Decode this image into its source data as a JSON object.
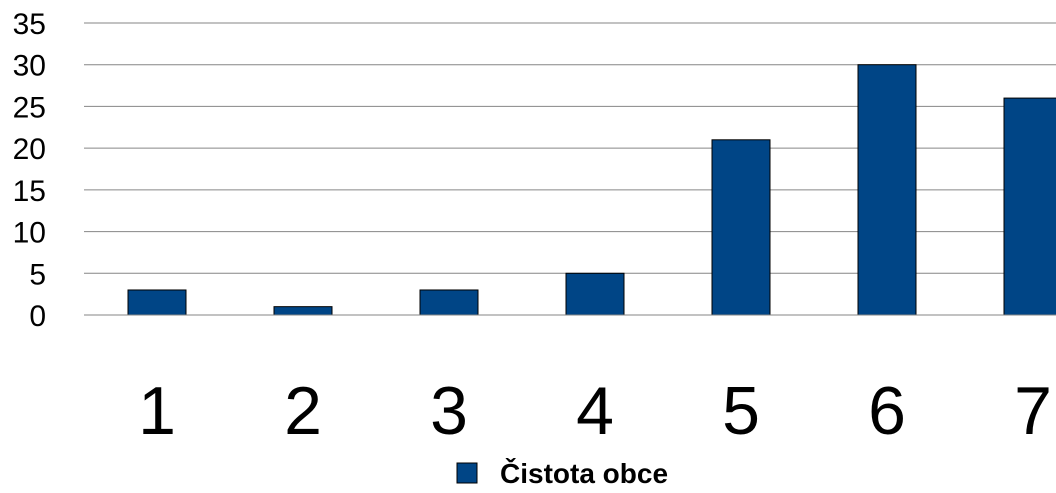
{
  "chart_data": {
    "type": "bar",
    "categories": [
      "1",
      "2",
      "3",
      "4",
      "5",
      "6",
      "7"
    ],
    "series": [
      {
        "name": "Čistota obce",
        "values": [
          3,
          1,
          3,
          5,
          21,
          30,
          26
        ],
        "color": "#004586"
      }
    ],
    "ylim": [
      0,
      35
    ],
    "yticks": [
      "0",
      "5",
      "10",
      "15",
      "20",
      "25",
      "30",
      "35"
    ],
    "grid": true,
    "legend": "bottom"
  }
}
